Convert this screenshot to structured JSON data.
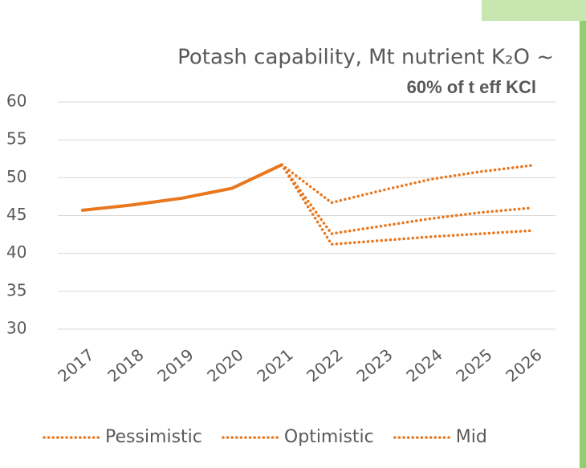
{
  "chart_data": {
    "type": "line",
    "title": "Potash capability, Mt nutrient K₂O ~",
    "subtitle": "60% of t eff KCl",
    "categories": [
      "2017",
      "2018",
      "2019",
      "2020",
      "2021",
      "2022",
      "2023",
      "2024",
      "2025",
      "2026"
    ],
    "series": [
      {
        "color": "#e8771e",
        "style": "solid",
        "values": [
          45.7,
          46.4,
          47.3,
          48.6,
          51.7,
          null,
          null,
          null,
          null,
          null
        ]
      },
      {
        "name": "Pessimistic",
        "color": "#e8771e",
        "style": "dotted",
        "values": [
          null,
          null,
          null,
          null,
          51.7,
          41.2,
          41.7,
          42.2,
          42.6,
          43.0
        ]
      },
      {
        "name": "Optimistic",
        "color": "#e8771e",
        "style": "dotted",
        "values": [
          null,
          null,
          null,
          null,
          51.7,
          46.7,
          48.3,
          49.8,
          50.8,
          51.6
        ]
      },
      {
        "name": "Mid",
        "color": "#e8771e",
        "style": "dotted",
        "values": [
          null,
          null,
          null,
          null,
          51.7,
          42.6,
          43.6,
          44.6,
          45.4,
          46.0
        ]
      }
    ],
    "ylim": [
      30,
      60
    ],
    "yticks": [
      30,
      35,
      40,
      45,
      50,
      55,
      60
    ],
    "grid": true,
    "legend": "bottom"
  }
}
